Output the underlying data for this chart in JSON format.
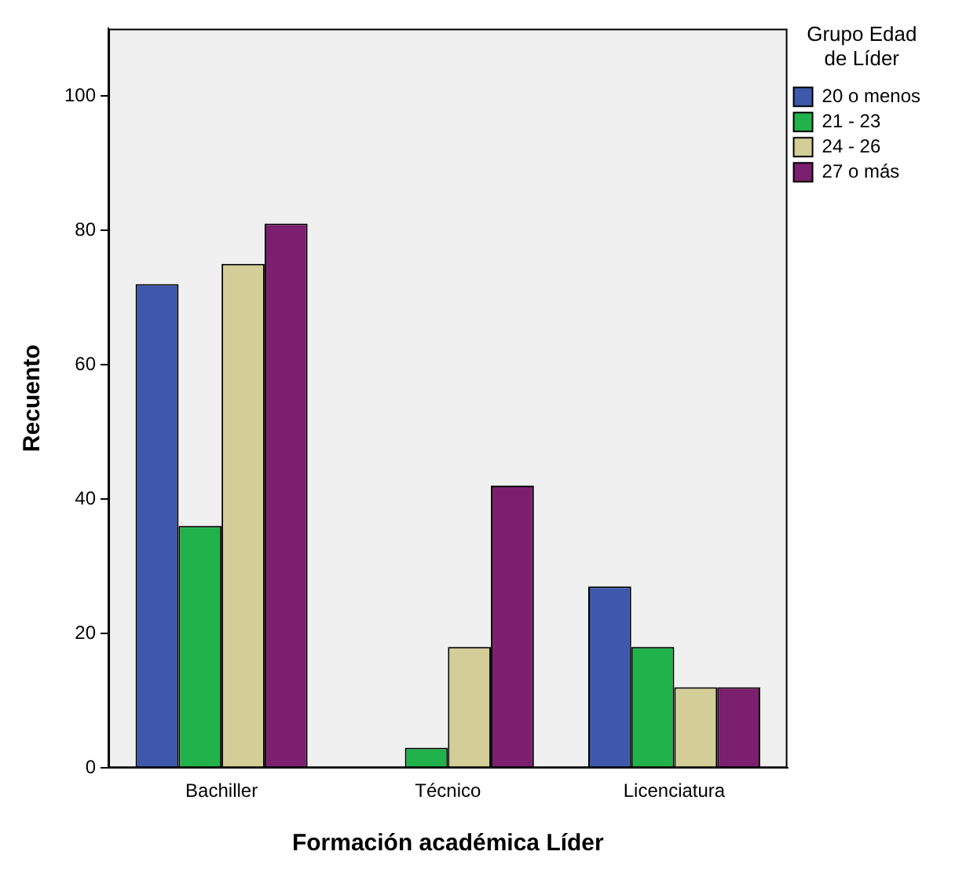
{
  "chart_data": {
    "type": "bar",
    "xlabel": "Formación académica Líder",
    "ylabel": "Recuento",
    "legend_title": "Grupo Edad de Líder",
    "legend": "top right",
    "grid": false,
    "categories": [
      "Bachiller",
      "Técnico",
      "Licenciatura"
    ],
    "ylim": [
      0,
      110
    ],
    "yticks": [
      0,
      20,
      40,
      60,
      80,
      100
    ],
    "series": [
      {
        "name": "20 o menos",
        "color": "#3e58ac",
        "values": [
          72,
          0,
          27
        ]
      },
      {
        "name": "21 - 23",
        "color": "#21b24b",
        "values": [
          36,
          3,
          18
        ]
      },
      {
        "name": "24 - 26",
        "color": "#d3ce97",
        "values": [
          75,
          18,
          12
        ]
      },
      {
        "name": "27 o más",
        "color": "#7b1f6e",
        "values": [
          81,
          42,
          12
        ]
      }
    ]
  }
}
